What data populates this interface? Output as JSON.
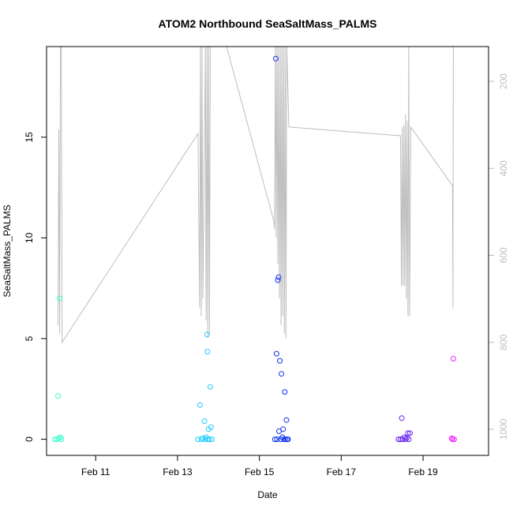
{
  "chart_data": {
    "type": "scatter",
    "title": "ATOM2 Northbound SeaSaltMass_PALMS",
    "xlabel": "Date",
    "ylabel": "SeaSaltMass_PALMS",
    "x_unit": "days (February, day-of-month)",
    "xlim": [
      9.8,
      20.6
    ],
    "ylim": [
      -0.8,
      19.5
    ],
    "x_ticks": [
      {
        "value": 11,
        "label": "Feb 11"
      },
      {
        "value": 13,
        "label": "Feb 13"
      },
      {
        "value": 15,
        "label": "Feb 15"
      },
      {
        "value": 17,
        "label": "Feb 17"
      },
      {
        "value": 19,
        "label": "Feb 19"
      }
    ],
    "y_ticks": [
      {
        "value": 0,
        "label": "0"
      },
      {
        "value": 5,
        "label": "5"
      },
      {
        "value": 10,
        "label": "10"
      },
      {
        "value": 15,
        "label": "15"
      }
    ],
    "right_axis": {
      "color": "#bebebe",
      "lim": [
        1060,
        120
      ],
      "ticks": [
        {
          "value": 200,
          "label": "200"
        },
        {
          "value": 400,
          "label": "400"
        },
        {
          "value": 600,
          "label": "600"
        },
        {
          "value": 800,
          "label": "800"
        },
        {
          "value": 1000,
          "label": "1000"
        }
      ]
    },
    "altitude_trace": {
      "color": "#bebebe",
      "points": [
        [
          10.08,
          760
        ],
        [
          10.1,
          310
        ],
        [
          10.12,
          780
        ],
        [
          10.14,
          120
        ],
        [
          10.16,
          120
        ],
        [
          10.18,
          800
        ],
        [
          13.5,
          320
        ],
        [
          13.54,
          720
        ],
        [
          13.56,
          120
        ],
        [
          13.58,
          740
        ],
        [
          13.6,
          120
        ],
        [
          13.62,
          700
        ],
        [
          13.68,
          120
        ],
        [
          13.7,
          750
        ],
        [
          13.72,
          120
        ],
        [
          13.74,
          790
        ],
        [
          13.76,
          120
        ],
        [
          13.78,
          780
        ],
        [
          13.8,
          120
        ],
        [
          14.2,
          120
        ],
        [
          15.35,
          520
        ],
        [
          15.37,
          540
        ],
        [
          15.39,
          120
        ],
        [
          15.41,
          560
        ],
        [
          15.43,
          120
        ],
        [
          15.45,
          620
        ],
        [
          15.47,
          120
        ],
        [
          15.49,
          700
        ],
        [
          15.51,
          120
        ],
        [
          15.53,
          760
        ],
        [
          15.55,
          120
        ],
        [
          15.57,
          740
        ],
        [
          15.59,
          120
        ],
        [
          15.61,
          780
        ],
        [
          15.63,
          120
        ],
        [
          15.65,
          790
        ],
        [
          15.67,
          120
        ],
        [
          15.72,
          305
        ],
        [
          18.45,
          325
        ],
        [
          18.47,
          670
        ],
        [
          18.49,
          305
        ],
        [
          18.51,
          670
        ],
        [
          18.53,
          300
        ],
        [
          18.55,
          670
        ],
        [
          18.57,
          275
        ],
        [
          18.59,
          700
        ],
        [
          18.61,
          290
        ],
        [
          18.63,
          740
        ],
        [
          18.65,
          120
        ],
        [
          18.67,
          740
        ],
        [
          18.7,
          305
        ],
        [
          19.72,
          440
        ],
        [
          19.73,
          720
        ],
        [
          19.74,
          120
        ]
      ]
    },
    "series": [
      {
        "values": [
          [
            10.0,
            0.0
          ],
          [
            10.05,
            0.0
          ],
          [
            10.08,
            2.15
          ],
          [
            10.1,
            0.05
          ],
          [
            10.12,
            7.0
          ],
          [
            10.14,
            0.1
          ],
          [
            10.16,
            0.0
          ]
        ]
      },
      {
        "values": [
          [
            13.5,
            0.0
          ],
          [
            13.55,
            1.7
          ],
          [
            13.58,
            0.0
          ],
          [
            13.62,
            0.05
          ],
          [
            13.66,
            0.9
          ],
          [
            13.68,
            0.0
          ],
          [
            13.7,
            0.1
          ],
          [
            13.72,
            5.2
          ],
          [
            13.73,
            4.35
          ],
          [
            13.74,
            0.0
          ],
          [
            13.76,
            0.5
          ],
          [
            13.78,
            0.0
          ],
          [
            13.8,
            2.6
          ],
          [
            13.82,
            0.6
          ],
          [
            13.84,
            0.0
          ]
        ]
      },
      {
        "values": [
          [
            15.38,
            0.0
          ],
          [
            15.4,
            18.9
          ],
          [
            15.42,
            4.25
          ],
          [
            15.43,
            0.0
          ],
          [
            15.45,
            7.9
          ],
          [
            15.47,
            8.05
          ],
          [
            15.48,
            0.4
          ],
          [
            15.5,
            3.9
          ],
          [
            15.52,
            0.0
          ],
          [
            15.54,
            3.25
          ],
          [
            15.56,
            0.1
          ],
          [
            15.58,
            0.5
          ],
          [
            15.6,
            0.0
          ],
          [
            15.62,
            2.35
          ],
          [
            15.64,
            0.0
          ],
          [
            15.66,
            0.95
          ],
          [
            15.68,
            0.0
          ],
          [
            15.7,
            0.0
          ]
        ]
      },
      {
        "values": [
          [
            18.4,
            0.0
          ],
          [
            18.45,
            0.0
          ],
          [
            18.48,
            1.05
          ],
          [
            18.5,
            0.0
          ],
          [
            18.54,
            0.1
          ],
          [
            18.57,
            0.0
          ],
          [
            18.6,
            0.05
          ],
          [
            18.63,
            0.3
          ],
          [
            18.65,
            0.0
          ],
          [
            18.68,
            0.3
          ]
        ]
      },
      {
        "values": [
          [
            19.7,
            0.05
          ],
          [
            19.72,
            0.0
          ],
          [
            19.74,
            4.0
          ],
          [
            19.76,
            0.0
          ]
        ]
      }
    ],
    "series_colors": [
      "#33ffcc",
      "#22ccff",
      "#1133ee",
      "#6622ee",
      "#ee22ff"
    ],
    "grid": false,
    "legend": "none"
  }
}
